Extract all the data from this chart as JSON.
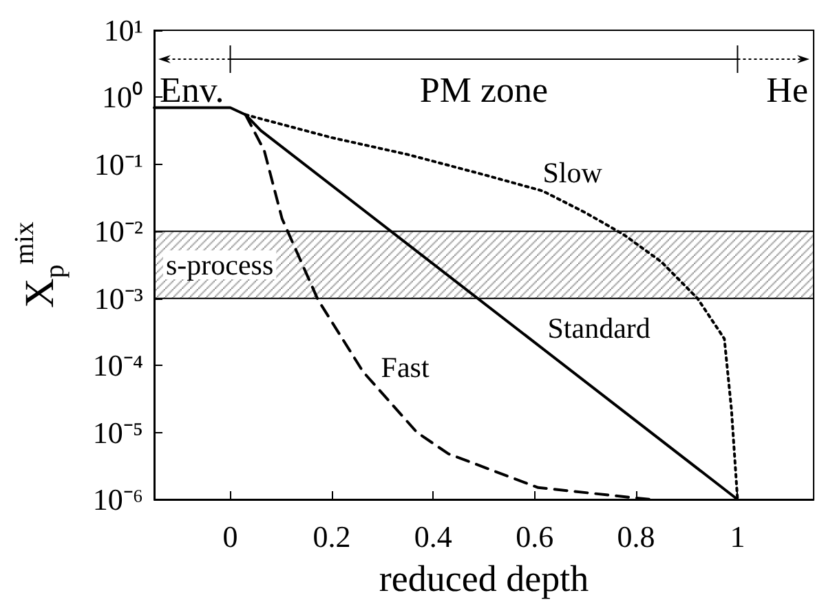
{
  "chart_data": {
    "type": "line",
    "xlabel": "reduced depth",
    "ylabel": "X$_{p}$$^{mix}$",
    "log": "y",
    "xlim": [
      -0.15,
      1.15
    ],
    "xticks": [
      0,
      0.2,
      0.4,
      0.6,
      0.8,
      1
    ],
    "ylim": [
      1e-06,
      10
    ],
    "yticks": [
      {
        "value": 1e-06,
        "label": "10⁻⁶"
      },
      {
        "value": 1e-05,
        "label": "10⁻⁵"
      },
      {
        "value": 0.0001,
        "label": "10⁻⁴"
      },
      {
        "value": 0.001,
        "label": "10⁻³"
      },
      {
        "value": 0.01,
        "label": "10⁻²"
      },
      {
        "value": 0.1,
        "label": "10⁻¹"
      },
      {
        "value": 1,
        "label": "10⁰"
      },
      {
        "value": 10,
        "label": "10¹"
      }
    ],
    "grid": false,
    "legend": false,
    "marker": "none",
    "series": [
      {
        "name": "Standard",
        "color": "#000000",
        "line_style": "solid",
        "x": [
          -0.15,
          0,
          0.03,
          0.06,
          1
        ],
        "values": [
          0.7,
          0.7,
          0.55,
          0.32,
          1e-06
        ]
      },
      {
        "name": "Slow",
        "color": "#000000",
        "line_style": "dotted",
        "x": [
          0.03,
          0.2,
          0.35,
          0.5,
          0.616,
          0.7,
          0.775,
          0.85,
          0.921,
          0.974,
          0.988,
          1
        ],
        "values": [
          0.55,
          0.25,
          0.14,
          0.07,
          0.04,
          0.019,
          0.009,
          0.0035,
          0.001,
          0.00025,
          2.2e-05,
          1e-06
        ]
      },
      {
        "name": "Fast",
        "color": "#000000",
        "line_style": "dashed",
        "x": [
          0.03,
          0.067,
          0.102,
          0.173,
          0.262,
          0.368,
          0.43,
          0.607,
          0.828
        ],
        "values": [
          0.55,
          0.16,
          0.0155,
          0.00095,
          8e-05,
          1e-05,
          4.8e-06,
          1.5e-06,
          1e-06
        ]
      }
    ],
    "bands": [
      {
        "axis": "y",
        "from": 0.001,
        "to": 0.01,
        "label": "s-process",
        "color": "#000000"
      }
    ],
    "annotations": [
      "Env.",
      "PM zone",
      "He"
    ]
  }
}
